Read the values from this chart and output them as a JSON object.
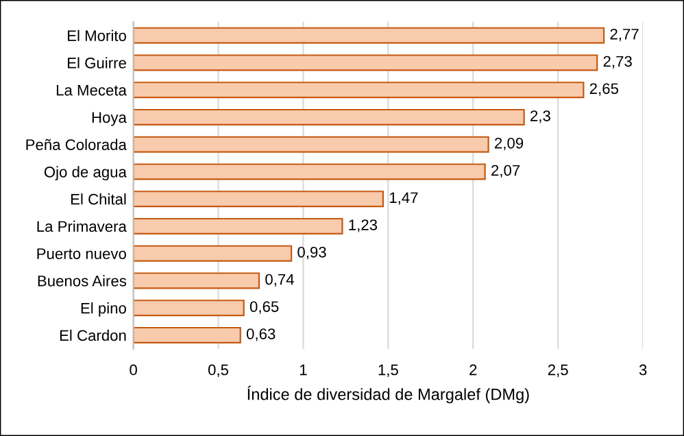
{
  "chart_data": {
    "type": "bar",
    "orientation": "horizontal",
    "xlabel": "Índice de diversidad de Margalef (DMg)",
    "categories": [
      "El Morito",
      "El Guirre",
      "La Meceta",
      "Hoya",
      "Peña Colorada",
      "Ojo de agua",
      "El Chital",
      "La Primavera",
      "Puerto nuevo",
      "Buenos Aires",
      "El pino",
      "El Cardon"
    ],
    "values": [
      2.77,
      2.73,
      2.65,
      2.3,
      2.09,
      2.07,
      1.47,
      1.23,
      0.93,
      0.74,
      0.65,
      0.63
    ],
    "value_labels": [
      "2,77",
      "2,73",
      "2,65",
      "2,3",
      "2,09",
      "2,07",
      "1,47",
      "1,23",
      "0,93",
      "0,74",
      "0,65",
      "0,63"
    ],
    "color": "#f8cbad",
    "xlim": [
      0,
      3
    ],
    "xticks": [
      0,
      {
        "value": 0.5,
        "label": "0,5"
      },
      1,
      {
        "value": 1.5,
        "label": "1,5"
      },
      2,
      {
        "value": 2.5,
        "label": "2,5"
      },
      3
    ],
    "grid": "x",
    "legend": false
  }
}
